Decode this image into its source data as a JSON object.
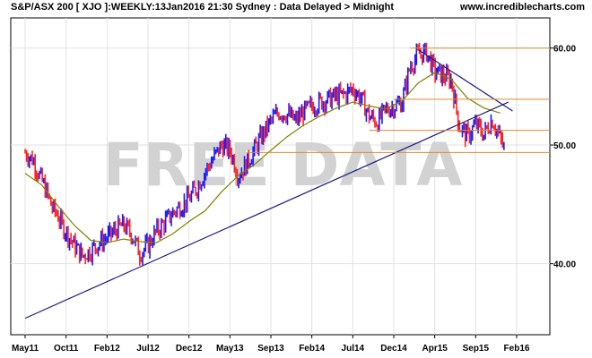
{
  "header": {
    "title": "S&P/ASX 200 [ XJO ]:WEEKLY:13Jan2016 21:30 Sydney : Data Delayed > Midnight",
    "site": "www.incrediblecharts.com"
  },
  "watermark": "FREE DATA",
  "colors": {
    "background": "#ffffff",
    "plot_background": "#ffffff",
    "grid": "#e2e2e2",
    "up_bar": "#1a1aff",
    "down_bar": "#ff2020",
    "moving_average": "#808000",
    "trendline": "#1c1c8a",
    "horizontal_lines": "#e08a2a",
    "watermark": "#d2d2d2"
  },
  "chart_data": {
    "type": "line",
    "y_scale": "log",
    "ylim": [
      3500,
      6350
    ],
    "y_ticks": [
      {
        "value": 4000,
        "label": "40.00"
      },
      {
        "value": 5000,
        "label": "50.00"
      },
      {
        "value": 6000,
        "label": "60.00"
      }
    ],
    "x_ticks": [
      "May11",
      "Oct11",
      "Feb12",
      "Jul12",
      "Dec12",
      "May13",
      "Sep13",
      "Feb14",
      "Jul14",
      "Dec14",
      "Apr15",
      "Sep15",
      "Feb16"
    ],
    "x_range": [
      0,
      12.9
    ],
    "series": [
      {
        "style": "price_bars",
        "points": [
          [
            0.0,
            4930
          ],
          [
            0.2,
            4860
          ],
          [
            0.35,
            4720
          ],
          [
            0.5,
            4600
          ],
          [
            0.65,
            4450
          ],
          [
            0.8,
            4380
          ],
          [
            0.9,
            4300
          ],
          [
            1.0,
            4250
          ],
          [
            1.2,
            4140
          ],
          [
            1.4,
            4060
          ],
          [
            1.6,
            4100
          ],
          [
            1.8,
            4160
          ],
          [
            2.0,
            4200
          ],
          [
            2.2,
            4260
          ],
          [
            2.4,
            4300
          ],
          [
            2.6,
            4230
          ],
          [
            2.8,
            4080
          ],
          [
            3.0,
            4140
          ],
          [
            3.2,
            4250
          ],
          [
            3.4,
            4320
          ],
          [
            3.6,
            4400
          ],
          [
            3.8,
            4460
          ],
          [
            4.0,
            4520
          ],
          [
            4.2,
            4620
          ],
          [
            4.4,
            4760
          ],
          [
            4.6,
            4880
          ],
          [
            4.8,
            5000
          ],
          [
            5.0,
            4950
          ],
          [
            5.1,
            4850
          ],
          [
            5.2,
            4720
          ],
          [
            5.4,
            4820
          ],
          [
            5.6,
            4960
          ],
          [
            5.8,
            5100
          ],
          [
            6.0,
            5230
          ],
          [
            6.2,
            5320
          ],
          [
            6.4,
            5300
          ],
          [
            6.6,
            5230
          ],
          [
            6.8,
            5320
          ],
          [
            7.0,
            5380
          ],
          [
            7.2,
            5420
          ],
          [
            7.4,
            5450
          ],
          [
            7.6,
            5480
          ],
          [
            7.8,
            5500
          ],
          [
            8.0,
            5560
          ],
          [
            8.2,
            5460
          ],
          [
            8.4,
            5280
          ],
          [
            8.6,
            5220
          ],
          [
            8.8,
            5340
          ],
          [
            9.0,
            5380
          ],
          [
            9.2,
            5420
          ],
          [
            9.4,
            5800
          ],
          [
            9.6,
            5930
          ],
          [
            9.8,
            5950
          ],
          [
            10.0,
            5740
          ],
          [
            10.2,
            5700
          ],
          [
            10.4,
            5650
          ],
          [
            10.5,
            5420
          ],
          [
            10.6,
            5180
          ],
          [
            10.8,
            5080
          ],
          [
            11.0,
            5200
          ],
          [
            11.2,
            5100
          ],
          [
            11.4,
            5250
          ],
          [
            11.6,
            5060
          ],
          [
            11.7,
            4950
          ]
        ]
      },
      {
        "style": "moving_average",
        "points": [
          [
            0.0,
            4740
          ],
          [
            0.4,
            4640
          ],
          [
            0.8,
            4460
          ],
          [
            1.2,
            4300
          ],
          [
            1.6,
            4180
          ],
          [
            2.0,
            4160
          ],
          [
            2.4,
            4190
          ],
          [
            2.8,
            4170
          ],
          [
            3.2,
            4160
          ],
          [
            3.6,
            4230
          ],
          [
            4.0,
            4330
          ],
          [
            4.4,
            4420
          ],
          [
            4.8,
            4580
          ],
          [
            5.2,
            4720
          ],
          [
            5.6,
            4820
          ],
          [
            6.0,
            4950
          ],
          [
            6.4,
            5080
          ],
          [
            6.8,
            5190
          ],
          [
            7.2,
            5280
          ],
          [
            7.6,
            5360
          ],
          [
            8.0,
            5420
          ],
          [
            8.4,
            5380
          ],
          [
            8.8,
            5350
          ],
          [
            9.2,
            5430
          ],
          [
            9.6,
            5620
          ],
          [
            10.0,
            5730
          ],
          [
            10.4,
            5660
          ],
          [
            10.8,
            5460
          ],
          [
            11.2,
            5360
          ],
          [
            11.6,
            5310
          ]
        ]
      },
      {
        "style": "trendline",
        "points": [
          [
            0.0,
            3610
          ],
          [
            11.8,
            5420
          ]
        ]
      },
      {
        "style": "trendline",
        "points": [
          [
            9.6,
            5980
          ],
          [
            11.9,
            5330
          ]
        ]
      },
      {
        "style": "horizontal_line",
        "points": [
          [
            9.4,
            6000
          ],
          [
            12.9,
            6000
          ]
        ]
      },
      {
        "style": "horizontal_line",
        "points": [
          [
            9.0,
            5450
          ],
          [
            12.9,
            5450
          ]
        ]
      },
      {
        "style": "horizontal_line",
        "points": [
          [
            8.4,
            5140
          ],
          [
            12.9,
            5140
          ]
        ]
      },
      {
        "style": "horizontal_line",
        "points": [
          [
            5.4,
            4930
          ],
          [
            12.9,
            4930
          ]
        ]
      }
    ]
  }
}
